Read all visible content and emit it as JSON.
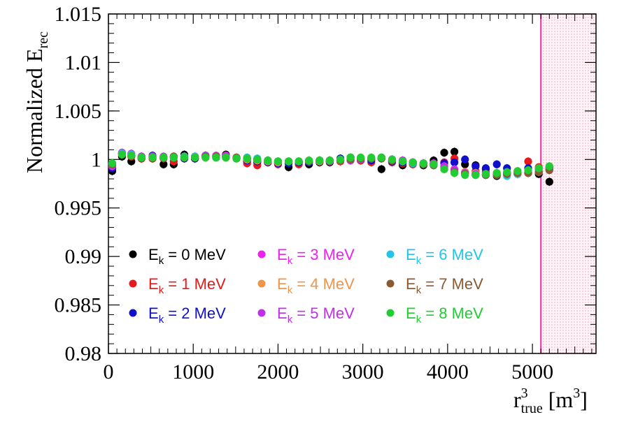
{
  "chart_data": {
    "type": "scatter",
    "xlabel": "r",
    "xlabel_sup": "3",
    "xlabel_sub": "true",
    "xlabel_unit": "[m",
    "xlabel_unit_sup": "3",
    "xlabel_unit_close": "]",
    "ylabel": "Normalized E",
    "ylabel_sub": "rec",
    "xlim": [
      0,
      5750
    ],
    "ylim": [
      0.98,
      1.015
    ],
    "x_ticks": [
      0,
      1000,
      2000,
      3000,
      4000,
      5000
    ],
    "y_ticks": [
      0.98,
      0.985,
      0.99,
      0.995,
      1,
      1.005,
      1.01,
      1.015
    ],
    "y_tick_labels": [
      "0.98",
      "0.985",
      "0.99",
      "0.995",
      "1",
      "1.005",
      "1.01",
      "1.015"
    ],
    "grid": false,
    "legend_position": "bottom-left, 3 columns",
    "cut_line_x": 5100,
    "excluded_region_x": [
      5100,
      5750
    ],
    "x": [
      45,
      160,
      270,
      390,
      520,
      650,
      770,
      895,
      1020,
      1145,
      1270,
      1385,
      1510,
      1635,
      1755,
      1880,
      2000,
      2125,
      2245,
      2365,
      2490,
      2610,
      2735,
      2855,
      2975,
      3100,
      3220,
      3345,
      3470,
      3590,
      3715,
      3835,
      3960,
      4080,
      4205,
      4330,
      4450,
      4580,
      4700,
      4825,
      4950,
      5075,
      5200
    ],
    "series": [
      {
        "name": "E_k = 0 MeV",
        "label_main": "E",
        "label_sub": "k",
        "label_rest": " = 0 MeV",
        "color": "#000000",
        "values": [
          0.9988,
          1.0003,
          0.9998,
          1.0001,
          1.0001,
          0.9995,
          0.9995,
          1.0005,
          1.0001,
          1.0004,
          1.0003,
          1.0005,
          1.0001,
          0.9998,
          0.9997,
          0.9997,
          0.9996,
          0.9992,
          0.9997,
          0.9995,
          0.9997,
          0.9997,
          0.9999,
          1.0002,
          0.9999,
          1.0001,
          0.999,
          0.9998,
          0.9994,
          0.9997,
          0.9994,
          0.9999,
          1.0007,
          1.0008,
          0.9995,
          0.9994,
          0.999,
          0.9983,
          0.9986,
          0.9985,
          0.9986,
          0.9985,
          0.9977
        ]
      },
      {
        "name": "E_k = 1 MeV",
        "label_main": "E",
        "label_sub": "k",
        "label_rest": " = 1 MeV",
        "color": "#e41a1c",
        "values": [
          0.9993,
          1.0006,
          1.0003,
          1.0001,
          1.0001,
          1.0001,
          0.9998,
          1.0001,
          1.0001,
          1.0002,
          1.0002,
          1.0002,
          1.0001,
          0.9996,
          0.9994,
          0.9998,
          0.9995,
          0.9997,
          0.9995,
          0.9997,
          0.9998,
          0.9999,
          0.9998,
          0.9999,
          0.9999,
          0.9997,
          1.0001,
          0.9997,
          0.9996,
          0.9995,
          0.9996,
          0.9996,
          0.9997,
          1.0001,
          0.9987,
          0.9988,
          0.9987,
          0.9986,
          0.9986,
          0.9988,
          0.9998,
          0.9992,
          0.9992
        ]
      },
      {
        "name": "E_k = 2 MeV",
        "label_main": "E",
        "label_sub": "k",
        "label_rest": " = 2 MeV",
        "color": "#1010cc",
        "values": [
          0.9991,
          1.0006,
          1.0004,
          1.0002,
          1.0004,
          1.0002,
          1.0002,
          1.0001,
          1.0001,
          1.0003,
          1.0002,
          1.0003,
          1.0001,
          0.9999,
          0.9998,
          0.9997,
          0.9996,
          0.9996,
          0.9997,
          0.9997,
          0.9998,
          0.9998,
          1.0001,
          1.0002,
          1.0001,
          0.9999,
          1.0001,
          0.9998,
          0.9997,
          0.9996,
          0.9996,
          0.9996,
          0.9996,
          0.9997,
          1.0,
          0.9993,
          0.9991,
          0.9995,
          0.9991,
          0.9987,
          0.9991,
          0.999,
          0.9991
        ]
      },
      {
        "name": "E_k = 3 MeV",
        "label_main": "E",
        "label_sub": "k",
        "label_rest": " = 3 MeV",
        "color": "#ee22ee",
        "values": [
          0.9993,
          1.0007,
          1.0006,
          1.0003,
          1.0003,
          1.0002,
          1.0003,
          1.0003,
          1.0003,
          1.0004,
          1.0004,
          1.0004,
          1.0002,
          1.0001,
          1.0,
          0.9999,
          0.9998,
          0.9998,
          0.9998,
          0.9999,
          0.9999,
          0.9998,
          0.9999,
          0.9999,
          1.0001,
          1.0001,
          1.0002,
          1.0,
          0.9999,
          0.9997,
          0.9996,
          0.9996,
          0.9993,
          0.999,
          0.9987,
          0.9985,
          0.9984,
          0.9984,
          0.9984,
          0.9985,
          0.9986,
          0.9987,
          0.9989
        ]
      },
      {
        "name": "E_k = 4 MeV",
        "label_main": "E",
        "label_sub": "k",
        "label_rest": " = 4 MeV",
        "color": "#f0944a",
        "values": [
          0.9995,
          1.0006,
          1.0005,
          1.0002,
          1.0003,
          1.0002,
          1.0002,
          1.0003,
          1.0002,
          1.0003,
          1.0003,
          1.0002,
          1.0001,
          1.0,
          0.9999,
          0.9998,
          0.9997,
          0.9998,
          0.9998,
          0.9998,
          0.9998,
          0.9999,
          0.9999,
          1.0,
          1.0001,
          1.0001,
          1.0001,
          0.9999,
          0.9998,
          0.9997,
          0.9996,
          0.9995,
          0.9991,
          0.9989,
          0.9987,
          0.9986,
          0.9985,
          0.9985,
          0.9986,
          0.9987,
          0.9987,
          0.9988,
          0.999
        ]
      },
      {
        "name": "E_k = 5 MeV",
        "label_main": "E",
        "label_sub": "k",
        "label_rest": " = 5 MeV",
        "color": "#c030e8",
        "values": [
          0.9994,
          1.0007,
          1.0005,
          1.0003,
          1.0003,
          1.0003,
          1.0003,
          1.0003,
          1.0003,
          1.0004,
          1.0003,
          1.0003,
          1.0002,
          1.0001,
          1.0,
          0.9999,
          0.9998,
          0.9998,
          0.9998,
          0.9998,
          0.9999,
          0.9999,
          0.9999,
          0.9999,
          1.0,
          1.0001,
          1.0002,
          1.0,
          0.9999,
          0.9997,
          0.9996,
          0.9995,
          0.9992,
          0.9989,
          0.9986,
          0.9985,
          0.9984,
          0.9984,
          0.9985,
          0.9986,
          0.9987,
          0.9987,
          0.999
        ]
      },
      {
        "name": "E_k = 6 MeV",
        "label_main": "E",
        "label_sub": "k",
        "label_rest": " = 6 MeV",
        "color": "#22c4e8",
        "values": [
          0.9996,
          1.0006,
          1.0005,
          1.0002,
          1.0002,
          1.0002,
          1.0002,
          1.0003,
          1.0003,
          1.0003,
          1.0002,
          1.0002,
          1.0002,
          1.0002,
          1.0001,
          0.9999,
          0.9998,
          0.9998,
          0.9998,
          0.9998,
          0.9999,
          0.9999,
          0.9999,
          1.0,
          1.0001,
          1.0001,
          1.0001,
          0.9999,
          0.9998,
          0.9996,
          0.9995,
          0.9994,
          0.999,
          0.9987,
          0.9985,
          0.9984,
          0.9984,
          0.9984,
          0.9983,
          0.9985,
          0.9986,
          0.9987,
          0.9989
        ]
      },
      {
        "name": "E_k = 7 MeV",
        "label_main": "E",
        "label_sub": "k",
        "label_rest": " = 7 MeV",
        "color": "#8b5a32",
        "values": [
          0.9995,
          1.0005,
          1.0004,
          1.0002,
          1.0002,
          1.0002,
          1.0003,
          1.0002,
          1.0002,
          1.0003,
          1.0003,
          1.0002,
          1.0002,
          1.0001,
          1.0,
          0.9999,
          0.9998,
          0.9998,
          0.9998,
          0.9998,
          0.9999,
          0.9999,
          0.9999,
          1.0,
          1.0001,
          1.0001,
          1.0001,
          0.9999,
          0.9998,
          0.9997,
          0.9995,
          0.9994,
          0.999,
          0.9987,
          0.9985,
          0.9984,
          0.9984,
          0.9984,
          0.9985,
          0.9986,
          0.9986,
          0.9987,
          0.9989
        ]
      },
      {
        "name": "E_k = 8 MeV",
        "label_main": "E",
        "label_sub": "k",
        "label_rest": " = 8 MeV",
        "color": "#22cc33",
        "values": [
          0.9996,
          1.0005,
          1.0004,
          1.0002,
          1.0002,
          1.0002,
          1.0002,
          1.0002,
          1.0002,
          1.0002,
          1.0002,
          1.0002,
          1.0001,
          1.0001,
          1.0,
          0.9999,
          0.9998,
          0.9998,
          0.9998,
          0.9999,
          0.9999,
          0.9999,
          1.0,
          1.0002,
          1.0002,
          1.0002,
          1.0002,
          1.0,
          0.9998,
          0.9997,
          0.9996,
          0.9995,
          0.999,
          0.9986,
          0.9984,
          0.9984,
          0.9985,
          0.9986,
          0.9987,
          0.9988,
          0.9989,
          0.9991,
          0.9993
        ]
      }
    ]
  }
}
